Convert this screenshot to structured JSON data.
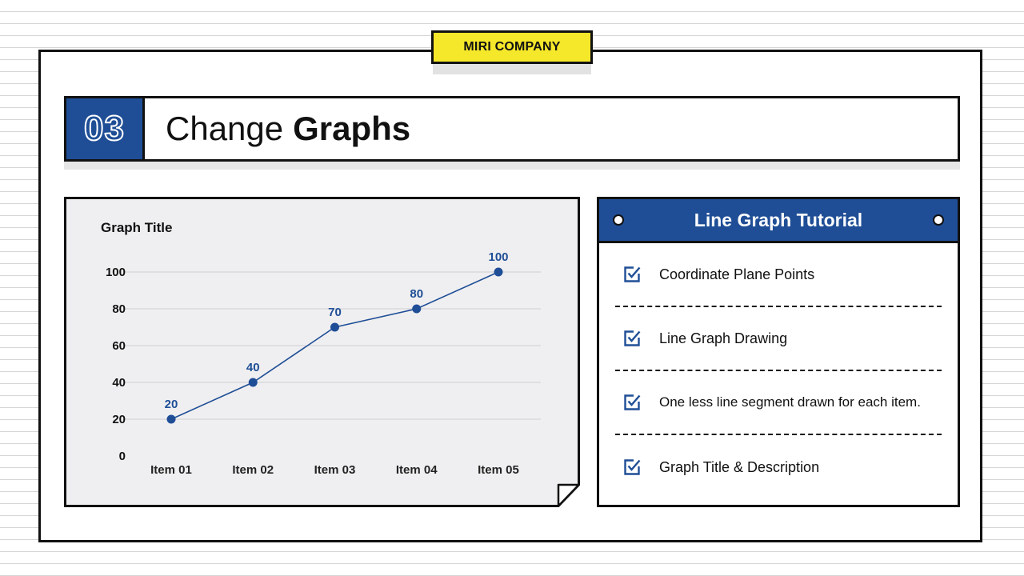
{
  "badge": {
    "label": "MIRI COMPANY"
  },
  "heading": {
    "number": "03",
    "title_light": "Change",
    "title_bold": "Graphs"
  },
  "chart_data": {
    "type": "line",
    "title": "Graph Title",
    "categories": [
      "Item 01",
      "Item 02",
      "Item 03",
      "Item 04",
      "Item 05"
    ],
    "series": [
      {
        "values": [
          20,
          40,
          70,
          80,
          100
        ]
      }
    ],
    "yticks": [
      "0",
      "20",
      "40",
      "60",
      "80",
      "100"
    ],
    "data_labels": [
      "20",
      "40",
      "70",
      "80",
      "100"
    ],
    "ylim": [
      0,
      100
    ],
    "grid": true,
    "color": "#1f4e96"
  },
  "tutorial": {
    "title": "Line Graph Tutorial",
    "items": [
      {
        "label": "Coordinate Plane Points"
      },
      {
        "label": "Line Graph Drawing"
      },
      {
        "label": "One less line segment drawn for each item."
      },
      {
        "label": "Graph Title & Description"
      }
    ]
  },
  "colors": {
    "accent": "#1f4e96",
    "badge": "#f5e72a",
    "panel": "#efeff1"
  }
}
